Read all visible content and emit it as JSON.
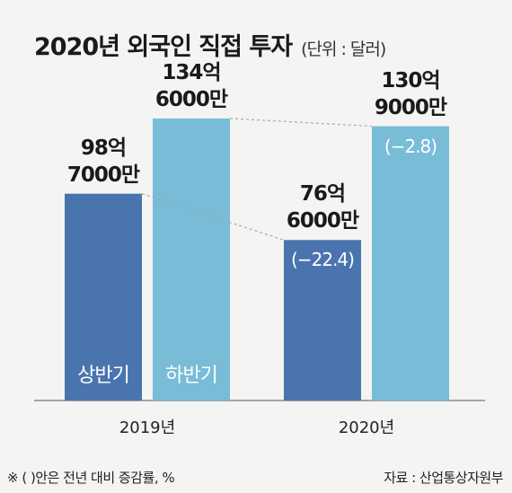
{
  "title": "2020년 외국인 직접 투자",
  "unit": "(단위 : 달러)",
  "footnote": "※ (  )안은 전년 대비 증감률, %",
  "source": "자료 : 산업통상자원부",
  "colors": {
    "first_half": "#4a74ae",
    "second_half": "#78bcd8",
    "connector": "#a8a8a8"
  },
  "chart_data": {
    "type": "bar",
    "title": "2020년 외국인 직접 투자",
    "categories": [
      "2019년",
      "2020년"
    ],
    "unit": "달러",
    "series": [
      {
        "name": "상반기",
        "values": [
          9870000000,
          7660000000
        ],
        "value_labels": [
          "98억 7000만",
          "76억 6000만"
        ],
        "change_labels": [
          "",
          "(−22.4)"
        ]
      },
      {
        "name": "하반기",
        "values": [
          13460000000,
          13090000000
        ],
        "value_labels": [
          "134억 6000만",
          "130억 9000만"
        ],
        "change_labels": [
          "",
          "(−2.8)"
        ]
      }
    ],
    "ylim": [
      0,
      15000000000
    ],
    "grid": false,
    "legend": "none"
  }
}
